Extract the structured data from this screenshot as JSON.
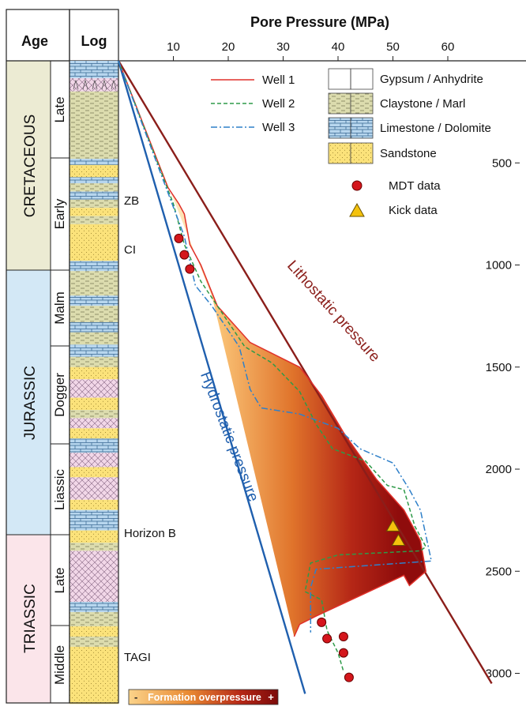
{
  "header": {
    "age_label": "Age",
    "log_label": "Log",
    "x_title": "Pore Pressure (MPa)"
  },
  "x_ticks": [
    "10",
    "20",
    "30",
    "40",
    "50",
    "60"
  ],
  "y_ticks": [
    "500",
    "1000",
    "1500",
    "2000",
    "2500",
    "3000"
  ],
  "periods": [
    {
      "name": "CRETACEOUS",
      "color": "#ecebd3",
      "epochs": [
        "Late",
        "Early"
      ]
    },
    {
      "name": "JURASSIC",
      "color": "#d3e8f6",
      "epochs": [
        "Malm",
        "Dogger",
        "Liassic"
      ]
    },
    {
      "name": "TRIASSIC",
      "color": "#fbe5ea",
      "epochs": [
        "Late",
        "Middle"
      ]
    }
  ],
  "horizons": [
    "ZB",
    "CI",
    "Horizon B",
    "TAGI"
  ],
  "legend": {
    "wells": [
      {
        "name": "Well 1",
        "color": "#e0302a",
        "dash": "solid"
      },
      {
        "name": "Well 2",
        "color": "#2e9a48",
        "dash": "dashed"
      },
      {
        "name": "Well 3",
        "color": "#2f80c9",
        "dash": "dashdot"
      }
    ],
    "lithologies": [
      {
        "name": "Gypsum / Anhydrite",
        "pattern": "gypsum"
      },
      {
        "name": "Claystone / Marl",
        "pattern": "clay"
      },
      {
        "name": "Limestone / Dolomite",
        "pattern": "lime"
      },
      {
        "name": "Sandstone",
        "pattern": "sand"
      }
    ],
    "markers": [
      {
        "name": "MDT data",
        "shape": "circle",
        "color": "#d4161c"
      },
      {
        "name": "Kick data",
        "shape": "triangle",
        "color": "#f4c20d"
      }
    ]
  },
  "annotations": {
    "lithostatic": "Lithostatic pressure",
    "hydrostatic": "Hydrostatic pressure"
  },
  "colorbar": {
    "minus": "-",
    "label": "Formation overpressure",
    "plus": "+"
  },
  "colors": {
    "lithostatic": "#8b1e1a",
    "hydrostatic": "#1f5fae",
    "overpressure_low": "#fff6d6",
    "overpressure_high": "#a01010"
  },
  "chart_data": {
    "type": "line",
    "xlabel": "Pore Pressure (MPa)",
    "ylabel": "",
    "xlim": [
      0,
      60
    ],
    "ylim": [
      0,
      3150
    ],
    "y_inverted": true,
    "lithostatic": [
      [
        0,
        0
      ],
      [
        68,
        3050
      ]
    ],
    "hydrostatic": [
      [
        0,
        0
      ],
      [
        34,
        3100
      ]
    ],
    "series": [
      {
        "name": "Well 1",
        "points": [
          [
            0,
            0
          ],
          [
            9,
            620
          ],
          [
            11,
            700
          ],
          [
            12,
            750
          ],
          [
            13,
            900
          ],
          [
            15,
            1000
          ],
          [
            18,
            1200
          ],
          [
            24,
            1380
          ],
          [
            33,
            1500
          ],
          [
            37,
            1640
          ],
          [
            41,
            1820
          ],
          [
            47,
            2050
          ],
          [
            52,
            2200
          ],
          [
            55,
            2350
          ],
          [
            56,
            2500
          ],
          [
            53,
            2570
          ],
          [
            52,
            2520
          ],
          [
            36,
            2720
          ],
          [
            33,
            2760
          ],
          [
            32,
            2820
          ]
        ]
      },
      {
        "name": "Well 2",
        "points": [
          [
            0,
            0
          ],
          [
            10,
            700
          ],
          [
            12,
            900
          ],
          [
            15,
            1080
          ],
          [
            23,
            1400
          ],
          [
            28,
            1480
          ],
          [
            33,
            1620
          ],
          [
            36,
            1780
          ],
          [
            39,
            1900
          ],
          [
            45,
            1960
          ],
          [
            49,
            2080
          ],
          [
            52,
            2100
          ],
          [
            54,
            2280
          ],
          [
            56,
            2380
          ],
          [
            55,
            2400
          ],
          [
            40,
            2420
          ],
          [
            35,
            2460
          ],
          [
            34,
            2600
          ],
          [
            37,
            2640
          ],
          [
            38,
            2790
          ],
          [
            40,
            2900
          ],
          [
            41,
            2990
          ]
        ]
      },
      {
        "name": "Well 3",
        "points": [
          [
            0,
            0
          ],
          [
            12,
            860
          ],
          [
            14,
            1100
          ],
          [
            17,
            1200
          ],
          [
            22,
            1400
          ],
          [
            24,
            1610
          ],
          [
            26,
            1700
          ],
          [
            33,
            1730
          ],
          [
            40,
            1800
          ],
          [
            44,
            1900
          ],
          [
            50,
            1970
          ],
          [
            53,
            2100
          ],
          [
            55,
            2200
          ],
          [
            57,
            2450
          ],
          [
            36,
            2490
          ],
          [
            35,
            2580
          ],
          [
            35,
            2800
          ]
        ]
      }
    ],
    "mdt_data": [
      [
        11,
        870
      ],
      [
        12,
        950
      ],
      [
        13,
        1020
      ],
      [
        37,
        2750
      ],
      [
        38,
        2830
      ],
      [
        41,
        2820
      ],
      [
        41,
        2900
      ],
      [
        42,
        3020
      ]
    ],
    "kick_data": [
      [
        50,
        2280
      ],
      [
        51,
        2350
      ]
    ]
  }
}
